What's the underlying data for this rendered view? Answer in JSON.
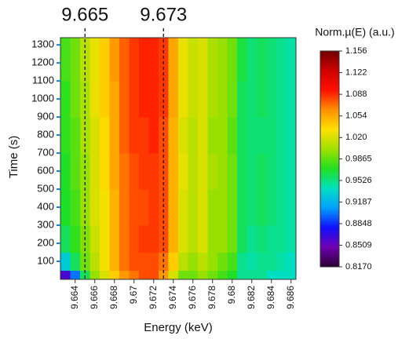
{
  "chart_data": {
    "type": "heatmap",
    "xlabel": "Energy (keV)",
    "ylabel": "Time (s)",
    "colorbar_label": "Norm.µ(E) (a.u.)",
    "xbins": [
      9.6625,
      9.6635,
      9.6645,
      9.6655,
      9.6665,
      9.6675,
      9.6685,
      9.6695,
      9.6705,
      9.6715,
      9.6725,
      9.6735,
      9.6745,
      9.6755,
      9.6765,
      9.6775,
      9.6785,
      9.6795,
      9.6805,
      9.6815,
      9.6825,
      9.6835,
      9.6845,
      9.6855,
      9.6865
    ],
    "ybins": [
      0,
      50,
      150,
      300,
      500,
      700,
      900,
      1100,
      1340
    ],
    "values": [
      [
        0.86,
        0.9,
        0.96,
        1.0,
        1.02,
        1.04,
        1.06,
        1.07,
        1.08,
        1.08,
        1.06,
        1.02,
        0.99,
        0.99,
        1.0,
        0.99,
        0.98,
        0.97,
        0.95,
        0.95,
        0.95,
        0.94,
        0.94,
        0.94
      ],
      [
        0.93,
        0.96,
        0.99,
        1.01,
        1.03,
        1.05,
        1.07,
        1.08,
        1.08,
        1.08,
        1.07,
        1.04,
        1.01,
        1.0,
        1.01,
        1.0,
        0.99,
        0.98,
        0.95,
        0.945,
        0.95,
        0.95,
        0.945,
        0.94
      ],
      [
        0.96,
        0.975,
        0.995,
        1.015,
        1.03,
        1.05,
        1.07,
        1.08,
        1.085,
        1.085,
        1.08,
        1.05,
        1.02,
        1.01,
        1.02,
        1.0,
        1.0,
        0.99,
        0.96,
        0.95,
        0.955,
        0.95,
        0.95,
        0.945
      ],
      [
        0.97,
        0.98,
        1.0,
        1.02,
        1.03,
        1.05,
        1.07,
        1.08,
        1.08,
        1.085,
        1.08,
        1.05,
        1.02,
        1.01,
        1.02,
        1.0,
        1.0,
        0.99,
        0.96,
        0.955,
        0.96,
        0.955,
        0.95,
        0.945
      ],
      [
        0.97,
        0.985,
        1.0,
        1.02,
        1.035,
        1.055,
        1.07,
        1.08,
        1.085,
        1.085,
        1.08,
        1.05,
        1.025,
        1.01,
        1.02,
        1.005,
        1.0,
        0.99,
        0.96,
        0.955,
        0.96,
        0.955,
        0.95,
        0.945
      ],
      [
        0.975,
        0.985,
        1.005,
        1.02,
        1.035,
        1.055,
        1.075,
        1.085,
        1.085,
        1.09,
        1.08,
        1.05,
        1.02,
        1.01,
        1.02,
        1.0,
        1.0,
        0.985,
        0.96,
        0.955,
        0.955,
        0.955,
        0.95,
        0.945
      ],
      [
        0.975,
        0.99,
        1.005,
        1.025,
        1.04,
        1.055,
        1.075,
        1.085,
        1.09,
        1.09,
        1.085,
        1.055,
        1.025,
        1.015,
        1.02,
        1.005,
        1.0,
        0.99,
        0.96,
        0.955,
        0.96,
        0.955,
        0.95,
        0.945
      ],
      [
        0.98,
        0.99,
        1.01,
        1.025,
        1.04,
        1.06,
        1.075,
        1.085,
        1.09,
        1.09,
        1.085,
        1.055,
        1.025,
        1.015,
        1.02,
        1.005,
        1.0,
        0.99,
        0.965,
        0.955,
        0.96,
        0.955,
        0.95,
        0.945
      ]
    ],
    "xlim": [
      9.6625,
      9.6865
    ],
    "ylim": [
      0,
      1340
    ],
    "xticks": [
      9.664,
      9.666,
      9.668,
      9.67,
      9.672,
      9.674,
      9.676,
      9.678,
      9.68,
      9.682,
      9.684,
      9.686
    ],
    "yticks": [
      100,
      200,
      300,
      400,
      500,
      600,
      700,
      800,
      900,
      1000,
      1100,
      1200,
      1300
    ],
    "vlines": [
      9.665,
      9.673
    ],
    "clim": [
      0.817,
      1.156
    ],
    "cticks": [
      1.156,
      1.122,
      1.088,
      1.054,
      {
        "value": 1.02,
        "label": "1.020"
      },
      0.9865,
      0.9526,
      0.9187,
      0.8848,
      0.8509,
      {
        "value": 0.817,
        "label": "0.8170"
      }
    ],
    "colorscale": [
      "#2a0033",
      "#7000b0",
      "#1010ff",
      "#00a0ff",
      "#00e0c0",
      "#20e020",
      "#a0e000",
      "#ffe000",
      "#ff9000",
      "#ff1000",
      "#d00000",
      "#700000"
    ]
  }
}
